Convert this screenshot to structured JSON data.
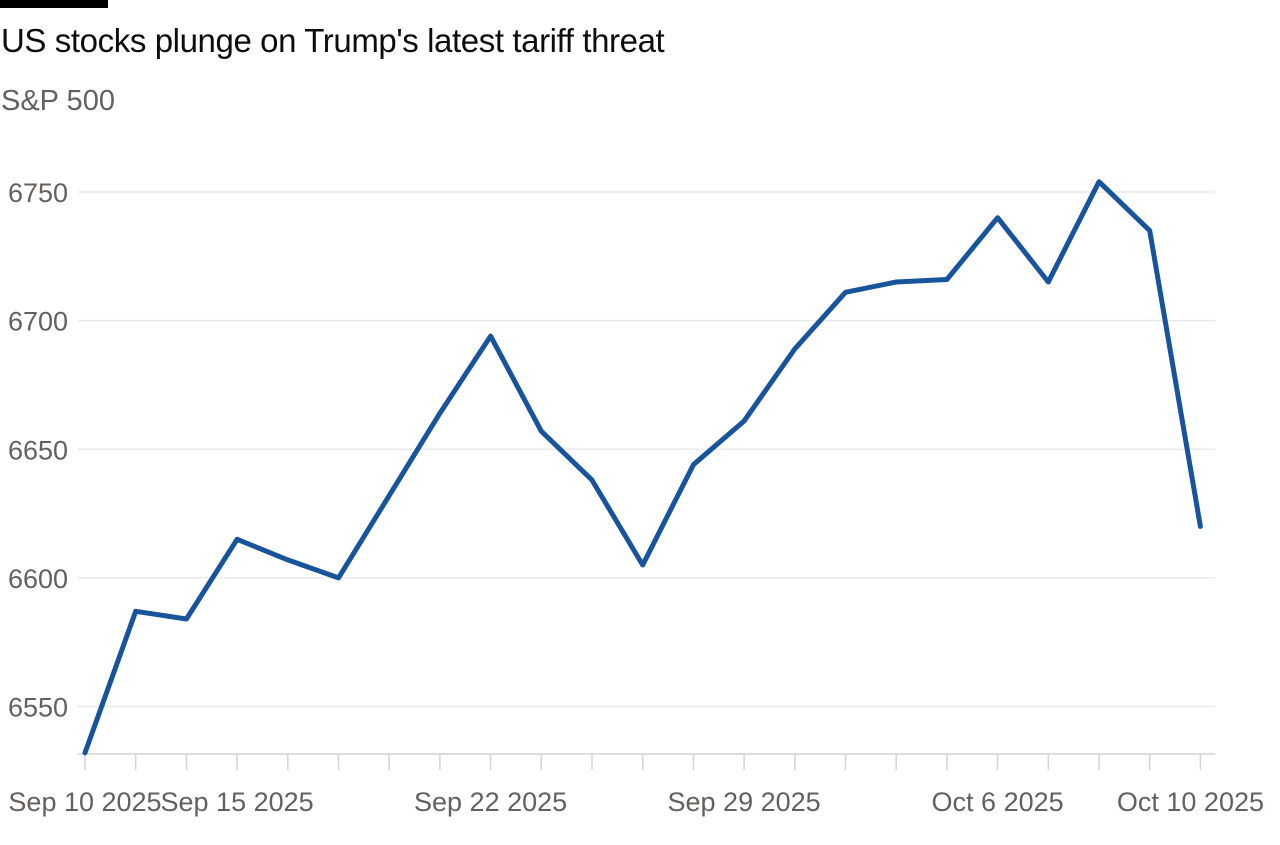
{
  "chart_data": {
    "type": "line",
    "title": "US stocks plunge on Trump's latest tariff threat",
    "subtitle": "S&P 500",
    "series_name": "S&P 500",
    "x": [
      "Sep 10 2025",
      "Sep 11 2025",
      "Sep 12 2025",
      "Sep 15 2025",
      "Sep 16 2025",
      "Sep 17 2025",
      "Sep 18 2025",
      "Sep 19 2025",
      "Sep 22 2025",
      "Sep 23 2025",
      "Sep 24 2025",
      "Sep 25 2025",
      "Sep 26 2025",
      "Sep 29 2025",
      "Sep 30 2025",
      "Oct 1 2025",
      "Oct 2 2025",
      "Oct 3 2025",
      "Oct 6 2025",
      "Oct 7 2025",
      "Oct 8 2025",
      "Oct 9 2025",
      "Oct 10 2025"
    ],
    "values": [
      6532,
      6587,
      6584,
      6615,
      6607,
      6600,
      6632,
      6664,
      6694,
      6657,
      6638,
      6605,
      6644,
      6661,
      6689,
      6711,
      6715,
      6716,
      6740,
      6715,
      6754,
      6735,
      6620
    ],
    "y_ticks": [
      6550,
      6600,
      6650,
      6700,
      6750
    ],
    "x_tick_labels": [
      {
        "label": "Sep 10 2025",
        "index": 0
      },
      {
        "label": "Sep 15 2025",
        "index": 3
      },
      {
        "label": "Sep 22 2025",
        "index": 8
      },
      {
        "label": "Sep 29 2025",
        "index": 13
      },
      {
        "label": "Oct 6 2025",
        "index": 18
      },
      {
        "label": "Oct 10 2025",
        "index": 22
      }
    ],
    "ylim": [
      6531,
      6766
    ],
    "xlabel": "",
    "ylabel": "",
    "grid": "horizontal",
    "legend": "none"
  },
  "colors": {
    "line": "#17549b",
    "accent_bar": "#000000",
    "grid": "#e9e9e9",
    "axis": "#d4d4d4",
    "tick": "#d4d4d4",
    "label_text": "#66605c",
    "title_text": "#0d0d0d",
    "background": "#ffffff"
  }
}
